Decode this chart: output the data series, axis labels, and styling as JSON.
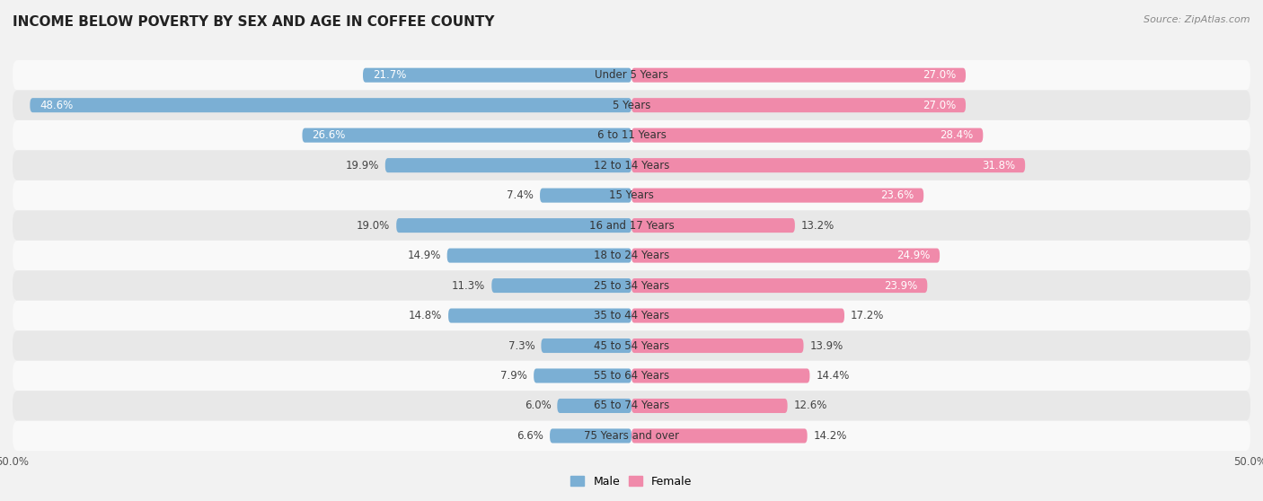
{
  "title": "INCOME BELOW POVERTY BY SEX AND AGE IN COFFEE COUNTY",
  "source": "Source: ZipAtlas.com",
  "categories": [
    "Under 5 Years",
    "5 Years",
    "6 to 11 Years",
    "12 to 14 Years",
    "15 Years",
    "16 and 17 Years",
    "18 to 24 Years",
    "25 to 34 Years",
    "35 to 44 Years",
    "45 to 54 Years",
    "55 to 64 Years",
    "65 to 74 Years",
    "75 Years and over"
  ],
  "male_values": [
    21.7,
    48.6,
    26.6,
    19.9,
    7.4,
    19.0,
    14.9,
    11.3,
    14.8,
    7.3,
    7.9,
    6.0,
    6.6
  ],
  "female_values": [
    27.0,
    27.0,
    28.4,
    31.8,
    23.6,
    13.2,
    24.9,
    23.9,
    17.2,
    13.9,
    14.4,
    12.6,
    14.2
  ],
  "male_color": "#7bafd4",
  "female_color": "#f08aaa",
  "male_label": "Male",
  "female_label": "Female",
  "axis_max": 50.0,
  "background_color": "#f2f2f2",
  "row_color_even": "#f9f9f9",
  "row_color_odd": "#e8e8e8",
  "title_fontsize": 11,
  "label_fontsize": 8.5,
  "value_fontsize": 8.5,
  "tick_fontsize": 8.5,
  "source_fontsize": 8
}
